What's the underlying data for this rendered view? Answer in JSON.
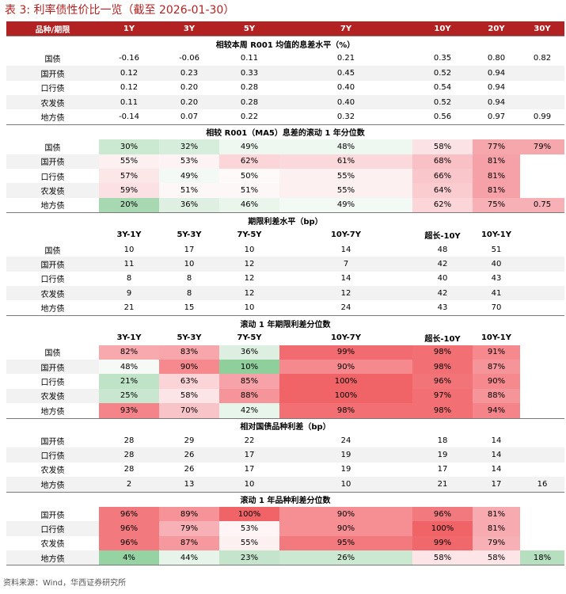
{
  "title": "表 3:  利率债性价比一览（截至 2026-01-30）",
  "headers": [
    "品种/期限",
    "1Y",
    "3Y",
    "5Y",
    "7Y",
    "10Y",
    "20Y",
    "30Y"
  ],
  "sections": [
    {
      "title": "相较本周 R001 均值的息差水平（%）",
      "subheader": null,
      "rows": [
        [
          "国债",
          "-0.16",
          "-0.06",
          "0.11",
          "0.21",
          "0.35",
          "0.80",
          "0.82"
        ],
        [
          "国开债",
          "0.12",
          "0.23",
          "0.33",
          "0.45",
          "0.52",
          "0.94",
          ""
        ],
        [
          "口行债",
          "0.12",
          "0.20",
          "0.28",
          "0.40",
          "0.54",
          "0.94",
          ""
        ],
        [
          "农发债",
          "0.11",
          "0.20",
          "0.28",
          "0.40",
          "0.52",
          "0.94",
          ""
        ],
        [
          "地方债",
          "-0.14",
          "0.07",
          "0.22",
          "0.32",
          "0.56",
          "0.97",
          "0.99"
        ]
      ]
    },
    {
      "title": "相较 R001（MA5）息差的滚动 1 年分位数",
      "subheader": null,
      "rows": [
        [
          "国债",
          "30%",
          "32%",
          "49%",
          "48%",
          "58%",
          "77%",
          "79%"
        ],
        [
          "国开债",
          "55%",
          "53%",
          "62%",
          "61%",
          "68%",
          "81%",
          ""
        ],
        [
          "口行债",
          "57%",
          "49%",
          "50%",
          "55%",
          "66%",
          "81%",
          ""
        ],
        [
          "农发债",
          "59%",
          "51%",
          "51%",
          "55%",
          "64%",
          "81%",
          ""
        ],
        [
          "地方债",
          "20%",
          "36%",
          "46%",
          "49%",
          "62%",
          "75%",
          "0.75"
        ]
      ],
      "colors": [
        [
          "#cbe8d0",
          "#d7eddb",
          "#eef7f0",
          "#eef7f0",
          "#fbe2e4",
          "#f6a7ac",
          "#f6a7ac"
        ],
        [
          "#fdf0f1",
          "#fdf3f4",
          "#fbd5d8",
          "#fbd8db",
          "#f9c1c5",
          "#f6a1a7",
          "#ffffff"
        ],
        [
          "#fbe6e8",
          "#f3f9f4",
          "#fffafa",
          "#fdf0f1",
          "#f9c7cb",
          "#f6a1a7",
          "#ffffff"
        ],
        [
          "#fbe1e3",
          "#fdf7f8",
          "#fdf7f8",
          "#fdf0f1",
          "#faccd0",
          "#f6a1a7",
          "#ffffff"
        ],
        [
          "#a8d8b2",
          "#dff0e2",
          "#eaf5ec",
          "#f3f9f4",
          "#fbd5d8",
          "#f7b0b5",
          "#f7b0b5"
        ]
      ]
    },
    {
      "title": "期限利差水平（bp）",
      "subheader": [
        "",
        "3Y-1Y",
        "5Y-3Y",
        "7Y-5Y",
        "10Y-7Y",
        "超长-10Y",
        "10Y-1Y",
        ""
      ],
      "rows": [
        [
          "国债",
          "10",
          "17",
          "10",
          "14",
          "48",
          "51",
          ""
        ],
        [
          "国开债",
          "11",
          "10",
          "12",
          "7",
          "42",
          "40",
          ""
        ],
        [
          "口行债",
          "8",
          "8",
          "12",
          "14",
          "40",
          "43",
          ""
        ],
        [
          "农发债",
          "9",
          "8",
          "12",
          "12",
          "42",
          "41",
          ""
        ],
        [
          "地方债",
          "21",
          "15",
          "10",
          "24",
          "43",
          "70",
          ""
        ]
      ]
    },
    {
      "title": "滚动 1 年期限利差分位数",
      "subheader": [
        "",
        "3Y-1Y",
        "5Y-3Y",
        "7Y-5Y",
        "10Y-7Y",
        "超长-10Y",
        "10Y-1Y",
        ""
      ],
      "rows": [
        [
          "国债",
          "82%",
          "83%",
          "36%",
          "99%",
          "98%",
          "91%",
          ""
        ],
        [
          "国开债",
          "48%",
          "90%",
          "10%",
          "90%",
          "98%",
          "87%",
          ""
        ],
        [
          "口行债",
          "21%",
          "63%",
          "85%",
          "100%",
          "96%",
          "90%",
          ""
        ],
        [
          "农发债",
          "25%",
          "58%",
          "88%",
          "100%",
          "97%",
          "88%",
          ""
        ],
        [
          "地方债",
          "93%",
          "70%",
          "42%",
          "98%",
          "98%",
          "94%",
          ""
        ]
      ],
      "colors": [
        [
          "#f7a9ae",
          "#f7a6ac",
          "#dcefe0",
          "#f26b70",
          "#f26f74",
          "#f5898e",
          "#ffffff"
        ],
        [
          "#f5faf6",
          "#f5898e",
          "#8fcf9c",
          "#f5898e",
          "#f26f74",
          "#f5959a",
          "#ffffff"
        ],
        [
          "#bfe3c7",
          "#fbd4d7",
          "#f6a2a8",
          "#f06468",
          "#f27378",
          "#f5898e",
          "#ffffff"
        ],
        [
          "#c9e7d0",
          "#fde5e7",
          "#f5959a",
          "#f06468",
          "#f26f74",
          "#f5959a",
          "#ffffff"
        ],
        [
          "#f48489",
          "#f9c4c8",
          "#e8f5eb",
          "#f26f74",
          "#f26f74",
          "#f48489",
          "#ffffff"
        ]
      ]
    },
    {
      "title": "相对国债品种利差（bp）",
      "subheader": null,
      "rows": [
        [
          "国开债",
          "28",
          "29",
          "22",
          "24",
          "18",
          "14",
          ""
        ],
        [
          "口行债",
          "28",
          "26",
          "17",
          "19",
          "19",
          "14",
          ""
        ],
        [
          "农发债",
          "28",
          "26",
          "17",
          "19",
          "17",
          "14",
          ""
        ],
        [
          "地方债",
          "2",
          "13",
          "10",
          "10",
          "21",
          "17",
          "16"
        ]
      ]
    },
    {
      "title": "滚动 1 年品种利差分位数",
      "subheader": null,
      "rows": [
        [
          "国开债",
          "96%",
          "89%",
          "100%",
          "90%",
          "96%",
          "81%",
          ""
        ],
        [
          "口行债",
          "96%",
          "79%",
          "53%",
          "90%",
          "100%",
          "81%",
          ""
        ],
        [
          "农发债",
          "96%",
          "87%",
          "55%",
          "95%",
          "99%",
          "79%",
          ""
        ],
        [
          "地方债",
          "4%",
          "44%",
          "23%",
          "26%",
          "58%",
          "58%",
          "18%"
        ]
      ],
      "colors": [
        [
          "#f27a7f",
          "#f59398",
          "#f06468",
          "#f58f94",
          "#f27a7f",
          "#f7aab0",
          "#ffffff"
        ],
        [
          "#f27a7f",
          "#f7b0b5",
          "#fff5f6",
          "#f58f94",
          "#f06468",
          "#f7aab0",
          "#ffffff"
        ],
        [
          "#f27a7f",
          "#f6999e",
          "#fdf0f1",
          "#f27a7f",
          "#f0686c",
          "#f7b0b5",
          "#ffffff"
        ],
        [
          "#95d3a3",
          "#e6f4e9",
          "#c4e5cc",
          "#cbe8d1",
          "#fde4e6",
          "#fde4e6",
          "#b5dfbf"
        ]
      ]
    }
  ],
  "source": "资料来源：Wind，华西证券研究所"
}
